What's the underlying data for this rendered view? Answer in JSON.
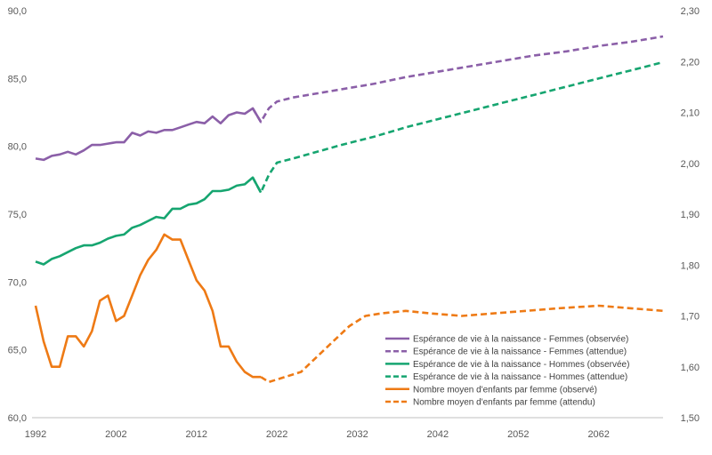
{
  "chart_data": {
    "type": "line",
    "title": "",
    "xlabel": "",
    "ylabel": "",
    "y2label": "",
    "xlim": [
      1992,
      2070
    ],
    "ylim": [
      60,
      90
    ],
    "y2lim": [
      1.5,
      2.3
    ],
    "x_ticks": [
      "1992",
      "2002",
      "2012",
      "2022",
      "2032",
      "2042",
      "2052",
      "2062"
    ],
    "y_ticks": [
      "60,0",
      "65,0",
      "70,0",
      "75,0",
      "80,0",
      "85,0",
      "90,0"
    ],
    "y2_ticks": [
      "1,50",
      "1,60",
      "1,70",
      "1,80",
      "1,90",
      "2,00",
      "2,10",
      "2,20",
      "2,30"
    ],
    "grid": false,
    "legend_position": "bottom-right",
    "colors": {
      "femmes": "#8B5FA8",
      "hommes": "#16A570",
      "enfants": "#EE7A15",
      "axis": "#bfbfbf"
    },
    "series": [
      {
        "name": "Espérance de vie à la naissance - Femmes (observée)",
        "axis": "left",
        "style": "solid",
        "color_key": "femmes",
        "points": [
          [
            1992,
            79.1
          ],
          [
            1993,
            79.0
          ],
          [
            1994,
            79.3
          ],
          [
            1995,
            79.4
          ],
          [
            1996,
            79.6
          ],
          [
            1997,
            79.4
          ],
          [
            1998,
            79.7
          ],
          [
            1999,
            80.1
          ],
          [
            2000,
            80.1
          ],
          [
            2001,
            80.2
          ],
          [
            2002,
            80.3
          ],
          [
            2003,
            80.3
          ],
          [
            2004,
            81.0
          ],
          [
            2005,
            80.8
          ],
          [
            2006,
            81.1
          ],
          [
            2007,
            81.0
          ],
          [
            2008,
            81.2
          ],
          [
            2009,
            81.2
          ],
          [
            2010,
            81.4
          ],
          [
            2011,
            81.6
          ],
          [
            2012,
            81.8
          ],
          [
            2013,
            81.7
          ],
          [
            2014,
            82.2
          ],
          [
            2015,
            81.7
          ],
          [
            2016,
            82.3
          ],
          [
            2017,
            82.5
          ],
          [
            2018,
            82.4
          ],
          [
            2019,
            82.8
          ],
          [
            2020,
            81.8
          ]
        ]
      },
      {
        "name": "Espérance de vie à la naissance - Femmes (attendue)",
        "axis": "left",
        "style": "dashed",
        "color_key": "femmes",
        "points": [
          [
            2019,
            82.8
          ],
          [
            2020,
            81.8
          ],
          [
            2021,
            82.8
          ],
          [
            2022,
            83.3
          ],
          [
            2024,
            83.6
          ],
          [
            2027,
            83.9
          ],
          [
            2030,
            84.2
          ],
          [
            2034,
            84.6
          ],
          [
            2038,
            85.1
          ],
          [
            2042,
            85.5
          ],
          [
            2046,
            85.9
          ],
          [
            2050,
            86.3
          ],
          [
            2054,
            86.7
          ],
          [
            2058,
            87.0
          ],
          [
            2062,
            87.4
          ],
          [
            2066,
            87.7
          ],
          [
            2070,
            88.1
          ]
        ]
      },
      {
        "name": "Espérance de vie à la naissance - Hommes (observée)",
        "axis": "left",
        "style": "solid",
        "color_key": "hommes",
        "points": [
          [
            1992,
            71.5
          ],
          [
            1993,
            71.3
          ],
          [
            1994,
            71.7
          ],
          [
            1995,
            71.9
          ],
          [
            1996,
            72.2
          ],
          [
            1997,
            72.5
          ],
          [
            1998,
            72.7
          ],
          [
            1999,
            72.7
          ],
          [
            2000,
            72.9
          ],
          [
            2001,
            73.2
          ],
          [
            2002,
            73.4
          ],
          [
            2003,
            73.5
          ],
          [
            2004,
            74.0
          ],
          [
            2005,
            74.2
          ],
          [
            2006,
            74.5
          ],
          [
            2007,
            74.8
          ],
          [
            2008,
            74.7
          ],
          [
            2009,
            75.4
          ],
          [
            2010,
            75.4
          ],
          [
            2011,
            75.7
          ],
          [
            2012,
            75.8
          ],
          [
            2013,
            76.1
          ],
          [
            2014,
            76.7
          ],
          [
            2015,
            76.7
          ],
          [
            2016,
            76.8
          ],
          [
            2017,
            77.1
          ],
          [
            2018,
            77.2
          ],
          [
            2019,
            77.7
          ],
          [
            2020,
            76.6
          ]
        ]
      },
      {
        "name": "Espérance de vie à la naissance - Hommes (attendue)",
        "axis": "left",
        "style": "dashed",
        "color_key": "hommes",
        "points": [
          [
            2019,
            77.7
          ],
          [
            2020,
            76.6
          ],
          [
            2021,
            77.9
          ],
          [
            2022,
            78.8
          ],
          [
            2024,
            79.1
          ],
          [
            2027,
            79.6
          ],
          [
            2030,
            80.1
          ],
          [
            2034,
            80.7
          ],
          [
            2038,
            81.4
          ],
          [
            2042,
            82.0
          ],
          [
            2046,
            82.6
          ],
          [
            2050,
            83.2
          ],
          [
            2054,
            83.8
          ],
          [
            2058,
            84.4
          ],
          [
            2062,
            85.0
          ],
          [
            2066,
            85.6
          ],
          [
            2070,
            86.2
          ]
        ]
      },
      {
        "name": "Nombre moyen d'enfants par femme (observé)",
        "axis": "right",
        "style": "solid",
        "color_key": "enfants",
        "points": [
          [
            1992,
            1.72
          ],
          [
            1993,
            1.65
          ],
          [
            1994,
            1.6
          ],
          [
            1995,
            1.6
          ],
          [
            1996,
            1.66
          ],
          [
            1997,
            1.66
          ],
          [
            1998,
            1.64
          ],
          [
            1999,
            1.67
          ],
          [
            2000,
            1.73
          ],
          [
            2001,
            1.74
          ],
          [
            2002,
            1.69
          ],
          [
            2003,
            1.7
          ],
          [
            2004,
            1.74
          ],
          [
            2005,
            1.78
          ],
          [
            2006,
            1.81
          ],
          [
            2007,
            1.83
          ],
          [
            2008,
            1.86
          ],
          [
            2009,
            1.85
          ],
          [
            2010,
            1.85
          ],
          [
            2011,
            1.81
          ],
          [
            2012,
            1.77
          ],
          [
            2013,
            1.75
          ],
          [
            2014,
            1.71
          ],
          [
            2015,
            1.64
          ],
          [
            2016,
            1.64
          ],
          [
            2017,
            1.61
          ],
          [
            2018,
            1.59
          ],
          [
            2019,
            1.58
          ],
          [
            2020,
            1.58
          ]
        ]
      },
      {
        "name": "Nombre moyen d'enfants par femme (attendu)",
        "axis": "right",
        "style": "dashed",
        "color_key": "enfants",
        "points": [
          [
            2020,
            1.58
          ],
          [
            2021,
            1.57
          ],
          [
            2023,
            1.58
          ],
          [
            2025,
            1.59
          ],
          [
            2027,
            1.62
          ],
          [
            2029,
            1.65
          ],
          [
            2031,
            1.68
          ],
          [
            2033,
            1.7
          ],
          [
            2035,
            1.705
          ],
          [
            2038,
            1.71
          ],
          [
            2041,
            1.705
          ],
          [
            2045,
            1.7
          ],
          [
            2049,
            1.705
          ],
          [
            2053,
            1.71
          ],
          [
            2057,
            1.715
          ],
          [
            2062,
            1.72
          ],
          [
            2066,
            1.715
          ],
          [
            2070,
            1.71
          ]
        ]
      }
    ]
  }
}
